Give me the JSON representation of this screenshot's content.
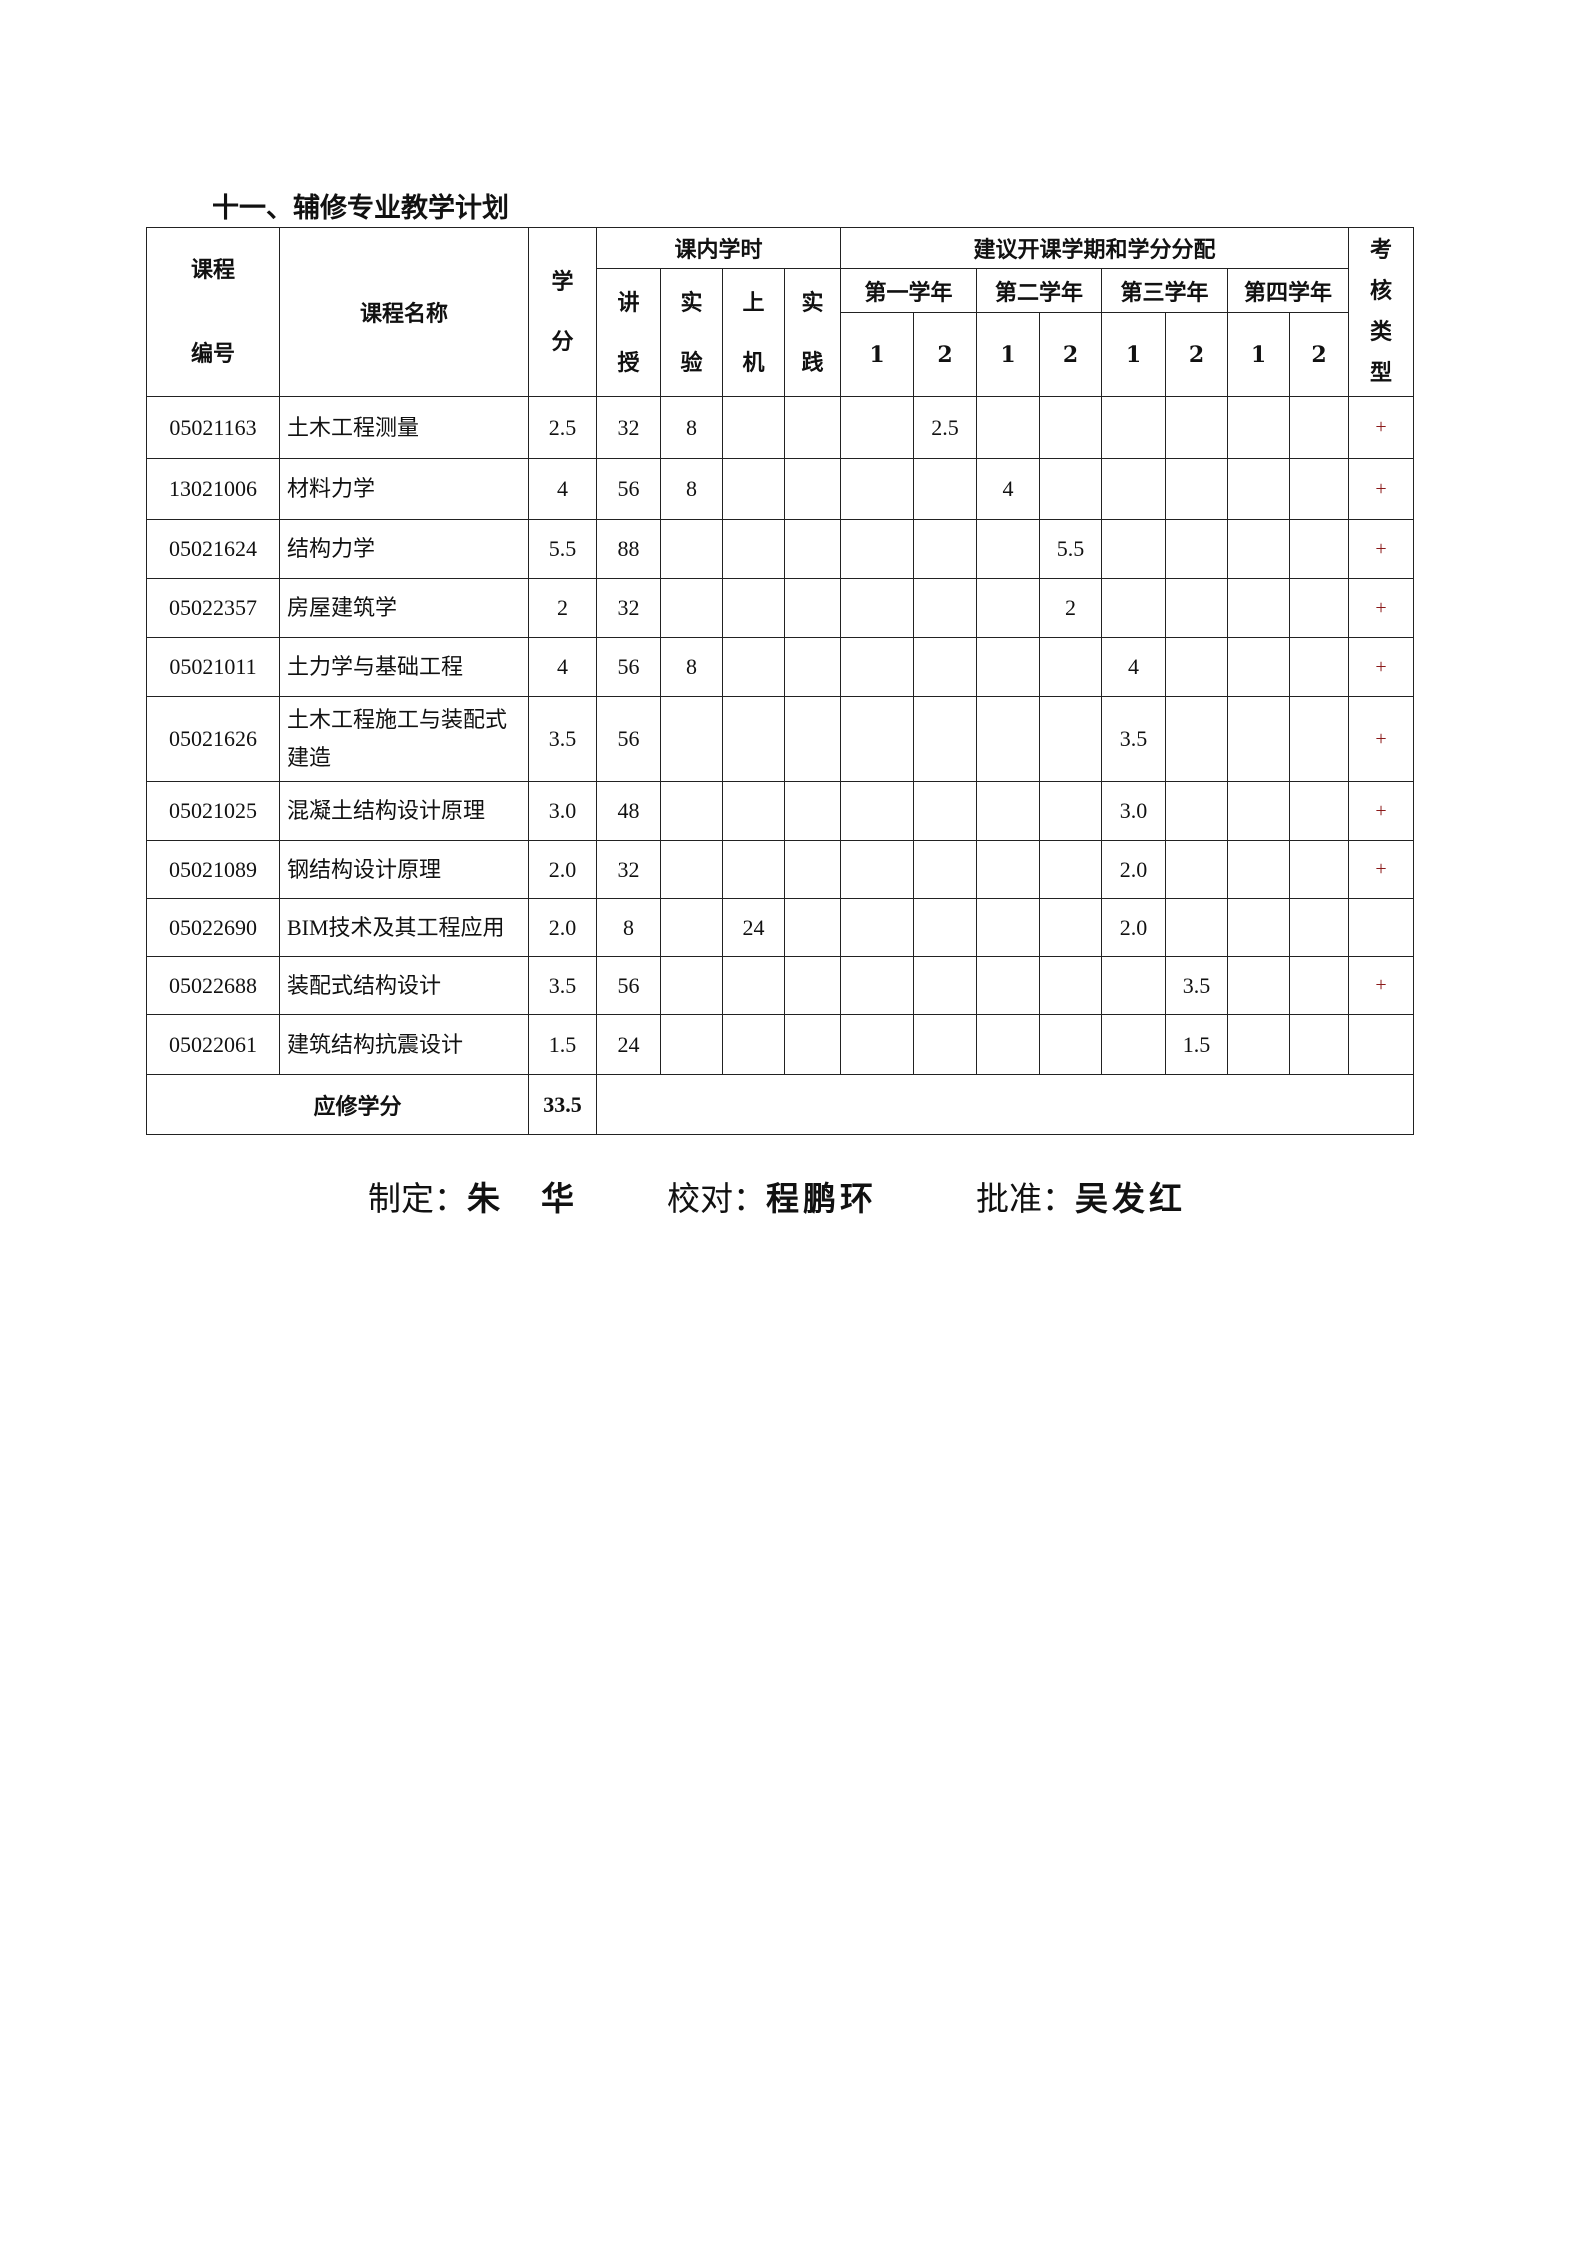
{
  "title": "十一、辅修专业教学计划",
  "header": {
    "code": "课程编号",
    "code_l1": "课程",
    "code_l2": "编号",
    "name": "课程名称",
    "credit_l1": "学",
    "credit_l2": "分",
    "hours_group": "课内学时",
    "hours": [
      [
        "讲",
        "授"
      ],
      [
        "实",
        "验"
      ],
      [
        "上",
        "机"
      ],
      [
        "实",
        "践"
      ]
    ],
    "semester_group": "建议开课学期和学分分配",
    "years": [
      "第一学年",
      "第二学年",
      "第三学年",
      "第四学年"
    ],
    "semesters": [
      "1",
      "2",
      "1",
      "2",
      "1",
      "2",
      "1",
      "2"
    ],
    "exam": [
      "考",
      "核",
      "类",
      "型"
    ]
  },
  "rows": [
    {
      "code": "05021163",
      "name": "土木工程测量",
      "credit": "2.5",
      "lecture": "32",
      "lab": "8",
      "computer": "",
      "practice": "",
      "sem": [
        "",
        "2.5",
        "",
        "",
        "",
        "",
        "",
        ""
      ],
      "exam": "+"
    },
    {
      "code": "13021006",
      "name": "材料力学",
      "credit": "4",
      "lecture": "56",
      "lab": "8",
      "computer": "",
      "practice": "",
      "sem": [
        "",
        "",
        "4",
        "",
        "",
        "",
        "",
        ""
      ],
      "exam": "+"
    },
    {
      "code": "05021624",
      "name": "结构力学",
      "credit": "5.5",
      "lecture": "88",
      "lab": "",
      "computer": "",
      "practice": "",
      "sem": [
        "",
        "",
        "",
        "5.5",
        "",
        "",
        "",
        ""
      ],
      "exam": "+"
    },
    {
      "code": "05022357",
      "name": "房屋建筑学",
      "credit": "2",
      "lecture": "32",
      "lab": "",
      "computer": "",
      "practice": "",
      "sem": [
        "",
        "",
        "",
        "2",
        "",
        "",
        "",
        ""
      ],
      "exam": "+"
    },
    {
      "code": "05021011",
      "name": "土力学与基础工程",
      "credit": "4",
      "lecture": "56",
      "lab": "8",
      "computer": "",
      "practice": "",
      "sem": [
        "",
        "",
        "",
        "",
        "4",
        "",
        "",
        ""
      ],
      "exam": "+"
    },
    {
      "code": "05021626",
      "name": "土木工程施工与装配式建造",
      "credit": "3.5",
      "lecture": "56",
      "lab": "",
      "computer": "",
      "practice": "",
      "sem": [
        "",
        "",
        "",
        "",
        "3.5",
        "",
        "",
        ""
      ],
      "exam": "+"
    },
    {
      "code": "05021025",
      "name": "混凝土结构设计原理",
      "credit": "3.0",
      "lecture": "48",
      "lab": "",
      "computer": "",
      "practice": "",
      "sem": [
        "",
        "",
        "",
        "",
        "3.0",
        "",
        "",
        ""
      ],
      "exam": "+"
    },
    {
      "code": "05021089",
      "name": "钢结构设计原理",
      "credit": "2.0",
      "lecture": "32",
      "lab": "",
      "computer": "",
      "practice": "",
      "sem": [
        "",
        "",
        "",
        "",
        "2.0",
        "",
        "",
        ""
      ],
      "exam": "+"
    },
    {
      "code": "05022690",
      "name": "BIM技术及其工程应用",
      "credit": "2.0",
      "lecture": "8",
      "lab": "",
      "computer": "24",
      "practice": "",
      "sem": [
        "",
        "",
        "",
        "",
        "2.0",
        "",
        "",
        ""
      ],
      "exam": ""
    },
    {
      "code": "05022688",
      "name": "装配式结构设计",
      "credit": "3.5",
      "lecture": "56",
      "lab": "",
      "computer": "",
      "practice": "",
      "sem": [
        "",
        "",
        "",
        "",
        "",
        "3.5",
        "",
        ""
      ],
      "exam": "+"
    },
    {
      "code": "05022061",
      "name": "建筑结构抗震设计",
      "credit": "1.5",
      "lecture": "24",
      "lab": "",
      "computer": "",
      "practice": "",
      "sem": [
        "",
        "",
        "",
        "",
        "",
        "1.5",
        "",
        ""
      ],
      "exam": ""
    }
  ],
  "total": {
    "label": "应修学分",
    "value": "33.5"
  },
  "signatures": [
    {
      "label": "制定：",
      "name": "朱　华"
    },
    {
      "label": "校对：",
      "name": "程鹏环"
    },
    {
      "label": "批准：",
      "name": "吴发红"
    }
  ]
}
